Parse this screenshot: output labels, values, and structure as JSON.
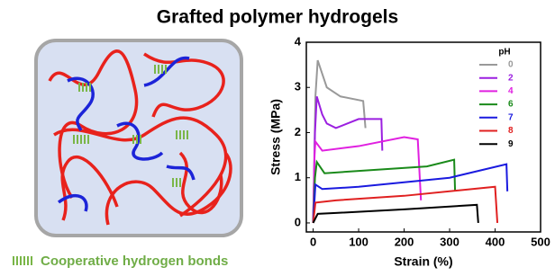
{
  "title": "Grafted polymer hydrogels",
  "diagram": {
    "legend": "Cooperative hydrogen bonds"
  },
  "chart_data": {
    "type": "line",
    "xlabel": "Strain (%)",
    "ylabel": "Stress (MPa)",
    "legend_title": "pH",
    "xlim": [
      -15,
      500
    ],
    "xticks": [
      0,
      100,
      200,
      300,
      400,
      500
    ],
    "ylim": [
      -0.2,
      4
    ],
    "yticks": [
      0,
      1,
      2,
      3,
      4
    ],
    "series": [
      {
        "name": "0",
        "color": "#999999",
        "x": [
          0,
          5,
          10,
          20,
          30,
          60,
          110,
          115
        ],
        "values": [
          0,
          2.8,
          3.6,
          3.3,
          3.0,
          2.8,
          2.7,
          2.1
        ]
      },
      {
        "name": "2",
        "color": "#9b1fe0",
        "x": [
          0,
          4,
          8,
          20,
          30,
          50,
          100,
          150,
          152
        ],
        "values": [
          0,
          2.0,
          2.8,
          2.4,
          2.2,
          2.1,
          2.3,
          2.3,
          1.6
        ]
      },
      {
        "name": "4",
        "color": "#e020e0",
        "x": [
          0,
          3,
          5,
          20,
          100,
          200,
          230,
          237
        ],
        "values": [
          0,
          1.5,
          1.8,
          1.6,
          1.7,
          1.9,
          1.85,
          0.5
        ]
      },
      {
        "name": "6",
        "color": "#1a8a1a",
        "x": [
          0,
          4,
          8,
          25,
          100,
          250,
          310,
          312
        ],
        "values": [
          0,
          1.0,
          1.35,
          1.1,
          1.15,
          1.25,
          1.4,
          0.7
        ]
      },
      {
        "name": "7",
        "color": "#1a1adf",
        "x": [
          0,
          5,
          20,
          100,
          300,
          425,
          427
        ],
        "values": [
          0,
          0.85,
          0.75,
          0.8,
          1.0,
          1.3,
          0.7
        ]
      },
      {
        "name": "8",
        "color": "#e02020",
        "x": [
          0,
          5,
          50,
          200,
          400,
          405
        ],
        "values": [
          0,
          0.45,
          0.5,
          0.6,
          0.8,
          0
        ]
      },
      {
        "name": "9",
        "color": "#000000",
        "x": [
          0,
          10,
          50,
          200,
          360,
          363
        ],
        "values": [
          0,
          0.2,
          0.22,
          0.3,
          0.4,
          0
        ]
      }
    ]
  }
}
